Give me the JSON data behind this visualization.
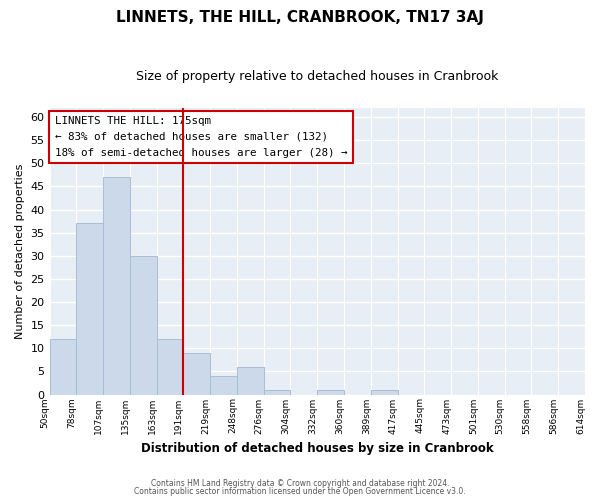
{
  "title": "LINNETS, THE HILL, CRANBROOK, TN17 3AJ",
  "subtitle": "Size of property relative to detached houses in Cranbrook",
  "xlabel": "Distribution of detached houses by size in Cranbrook",
  "ylabel": "Number of detached properties",
  "bar_color": "#ccd9eb",
  "bar_edge_color": "#aabdd4",
  "bins": [
    "50sqm",
    "78sqm",
    "107sqm",
    "135sqm",
    "163sqm",
    "191sqm",
    "219sqm",
    "248sqm",
    "276sqm",
    "304sqm",
    "332sqm",
    "360sqm",
    "389sqm",
    "417sqm",
    "445sqm",
    "473sqm",
    "501sqm",
    "530sqm",
    "558sqm",
    "586sqm",
    "614sqm"
  ],
  "values": [
    12,
    37,
    47,
    30,
    12,
    9,
    4,
    6,
    1,
    0,
    1,
    0,
    1,
    0,
    0,
    0,
    0,
    0,
    0,
    0
  ],
  "ylim": [
    0,
    62
  ],
  "yticks": [
    0,
    5,
    10,
    15,
    20,
    25,
    30,
    35,
    40,
    45,
    50,
    55,
    60
  ],
  "annotation_title": "LINNETS THE HILL: 175sqm",
  "annotation_line1": "← 83% of detached houses are smaller (132)",
  "annotation_line2": "18% of semi-detached houses are larger (28) →",
  "vline_color": "#cc0000",
  "background_color": "#e8eef5",
  "footer_line1": "Contains HM Land Registry data © Crown copyright and database right 2024.",
  "footer_line2": "Contains public sector information licensed under the Open Government Licence v3.0."
}
